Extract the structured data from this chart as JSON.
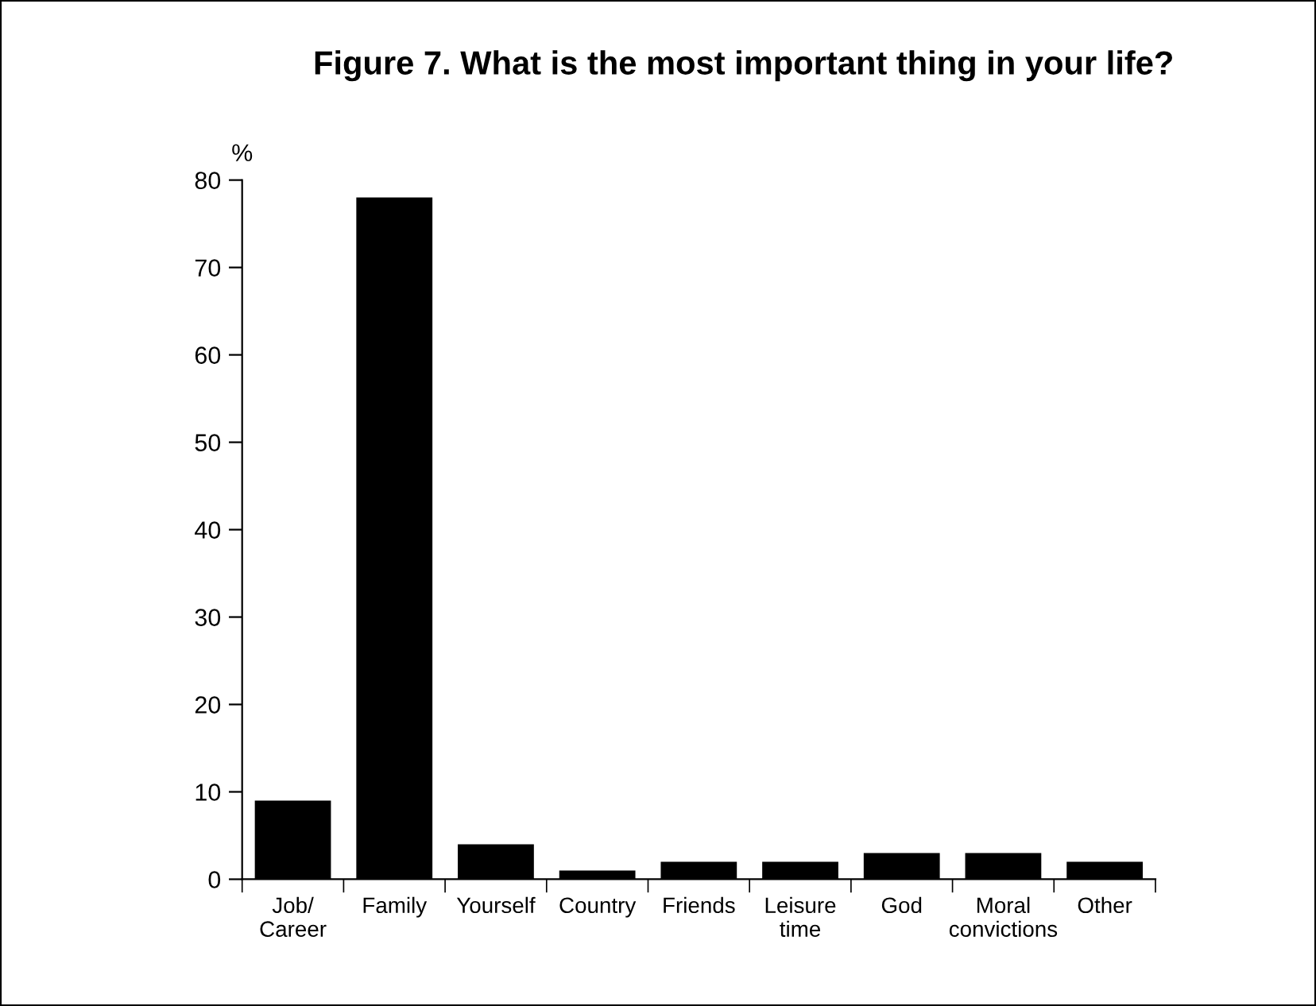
{
  "chart_data": {
    "type": "bar",
    "title": "Figure 7. What is the most important thing in your life?",
    "ylabel": "%",
    "categories": [
      "Job/\nCareer",
      "Family",
      "Yourself",
      "Country",
      "Friends",
      "Leisure\ntime",
      "God",
      "Moral\nconvictions",
      "Other"
    ],
    "values": [
      9,
      78,
      4,
      1,
      2,
      2,
      3,
      3,
      2
    ],
    "color": "#000000",
    "ylim": [
      0,
      80
    ],
    "yticks": [
      0,
      10,
      20,
      30,
      40,
      50,
      60,
      70,
      80
    ],
    "grid": false,
    "legend": false
  }
}
